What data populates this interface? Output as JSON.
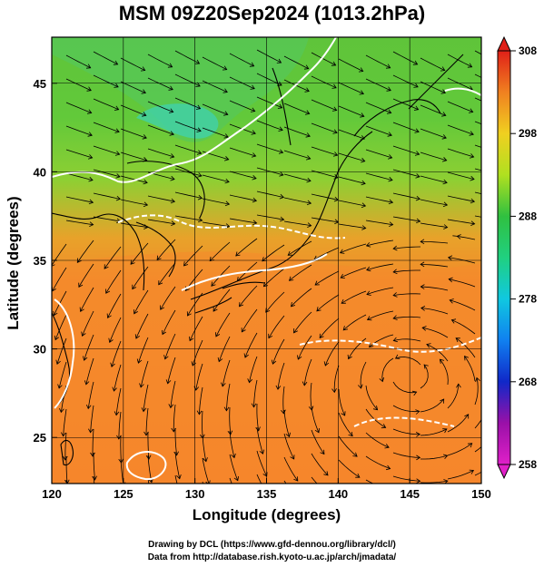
{
  "title": "MSM 09Z20Sep2024 (1013.2hPa)",
  "xlabel": "Longitude (degrees)",
  "ylabel": "Latitude  (degrees)",
  "x_ticks": [
    "120",
    "125",
    "130",
    "135",
    "140",
    "145",
    "150"
  ],
  "y_ticks": [
    "25",
    "30",
    "35",
    "40",
    "45"
  ],
  "colorbar_ticks": [
    "258",
    "268",
    "278",
    "288",
    "298",
    "308"
  ],
  "credits": {
    "line1": "Drawing by DCL (https://www.gfd-dennou.org/library/dcl/)",
    "line2": "Data from http://database.rish.kyoto-u.ac.jp/arch/jmadata/"
  },
  "map": {
    "lon_range": [
      120,
      150
    ],
    "lat_range": [
      22.4,
      47.6
    ],
    "colorbar_range": [
      258,
      308
    ],
    "colors": {
      "warm": "#f07a2a",
      "mid": "#7cc63a",
      "cool": "#3fd2b0",
      "coast": "#000000",
      "contour": "#ffffff"
    }
  },
  "chart_data": {
    "type": "heatmap",
    "title": "MSM 09Z20Sep2024 (1013.2hPa)",
    "xlabel": "Longitude (degrees)",
    "ylabel": "Latitude  (degrees)",
    "xlim": [
      120,
      150
    ],
    "ylim": [
      22.4,
      47.6
    ],
    "colorbar": {
      "min": 258,
      "max": 308,
      "ticks": [
        258,
        268,
        278,
        288,
        298,
        308
      ]
    },
    "grid": true
  }
}
